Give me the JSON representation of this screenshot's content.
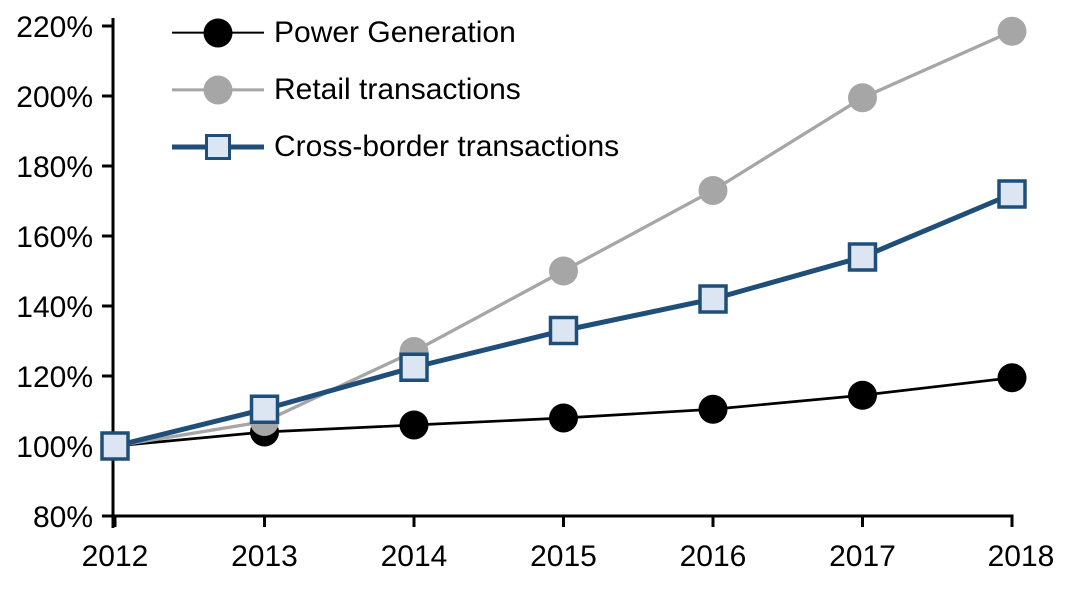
{
  "chart_data": {
    "type": "line",
    "title": "",
    "xlabel": "",
    "ylabel": "",
    "categories": [
      "2012",
      "2013",
      "2014",
      "2015",
      "2016",
      "2017",
      "2018"
    ],
    "series": [
      {
        "name": "Power Generation",
        "marker": "circle",
        "color": "#000000",
        "marker_fill": "#000000",
        "marker_stroke": "#000000",
        "line_width": 2.7,
        "values": [
          100,
          104,
          106,
          108,
          110.5,
          114.5,
          119.5
        ]
      },
      {
        "name": "Retail transactions",
        "marker": "circle",
        "color": "#A6A6A6",
        "marker_fill": "#A6A6A6",
        "marker_stroke": "#A6A6A6",
        "line_width": 3.3,
        "values": [
          100,
          107,
          127,
          150,
          173,
          199.5,
          218.5
        ]
      },
      {
        "name": "Cross-border transactions",
        "marker": "square",
        "color": "#1F4E79",
        "marker_fill": "#DCE6F2",
        "marker_stroke": "#1F4E79",
        "line_width": 5,
        "values": [
          100,
          110.5,
          122.5,
          133,
          142,
          154,
          172
        ]
      }
    ],
    "ylim": [
      80,
      220
    ],
    "y_tick_step": 20,
    "y_tick_labels": [
      "80%",
      "100%",
      "120%",
      "140%",
      "160%",
      "180%",
      "200%",
      "220%"
    ],
    "value_format": "percent",
    "grid": false,
    "legend_position": "top-left",
    "axis_color": "#000000"
  }
}
